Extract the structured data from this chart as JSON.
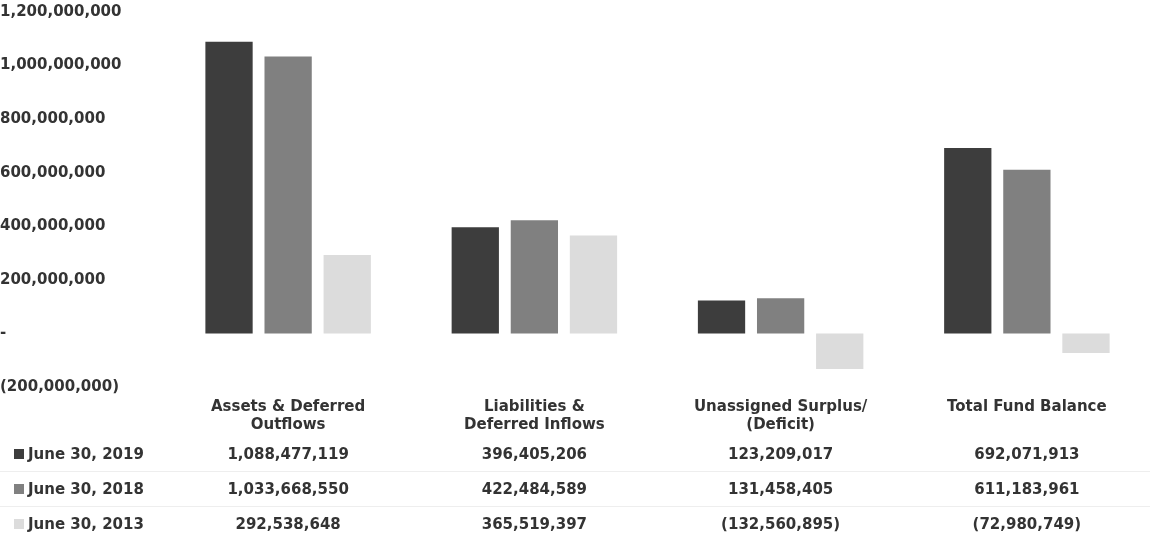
{
  "chart_data": {
    "type": "bar",
    "categories": [
      "Assets & Deferred Outflows",
      "Liabilities & Deferred Inflows",
      "Unassigned Surplus/ (Deficit)",
      "Total Fund Balance"
    ],
    "series": [
      {
        "name": "June 30, 2019",
        "color": "#3d3d3d",
        "values": [
          1088477119,
          396405206,
          123209017,
          692071913
        ],
        "value_labels": [
          "1,088,477,119",
          "396,405,206",
          "123,209,017",
          "692,071,913"
        ]
      },
      {
        "name": "June 30, 2018",
        "color": "#808080",
        "values": [
          1033668550,
          422484589,
          131458405,
          611183961
        ],
        "value_labels": [
          "1,033,668,550",
          "422,484,589",
          "131,458,405",
          "611,183,961"
        ]
      },
      {
        "name": "June 30, 2013",
        "color": "#dcdcdc",
        "values": [
          292538648,
          365519397,
          -132560895,
          -72980749
        ],
        "value_labels": [
          "292,538,648",
          "365,519,397",
          "(132,560,895)",
          "(72,980,749)"
        ]
      }
    ],
    "ylim": [
      -200000000,
      1200000000
    ],
    "yticks": [
      {
        "value": -200000000,
        "label": "(200,000,000)"
      },
      {
        "value": 0,
        "label": "-"
      },
      {
        "value": 200000000,
        "label": "200,000,000"
      },
      {
        "value": 400000000,
        "label": "400,000,000"
      },
      {
        "value": 600000000,
        "label": "600,000,000"
      },
      {
        "value": 800000000,
        "label": "800,000,000"
      },
      {
        "value": 1000000000,
        "label": "1,000,000,000"
      },
      {
        "value": 1200000000,
        "label": "1,200,000,000"
      }
    ],
    "grid": false,
    "legend": "bottom left"
  }
}
